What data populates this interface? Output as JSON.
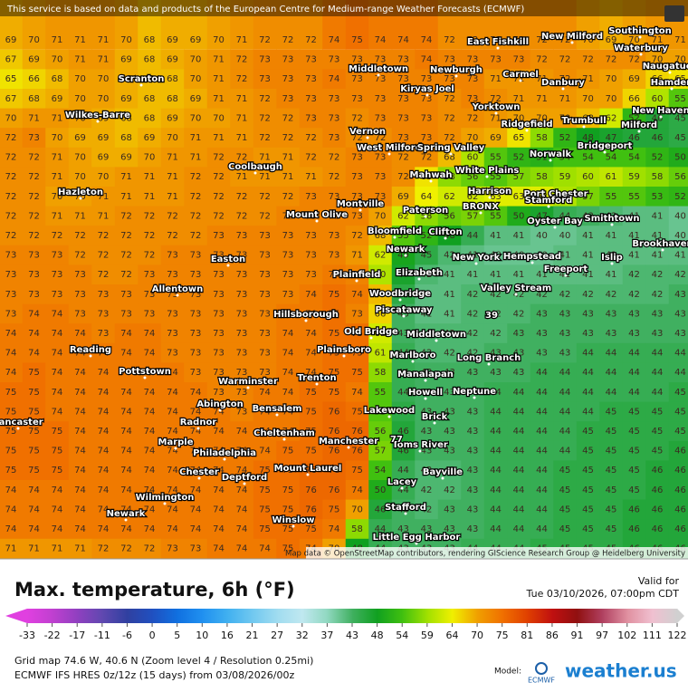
{
  "header": {
    "notice": "This service is based on data and products of the European Centre for Medium-range Weather Forecasts (ECMWF)"
  },
  "map": {
    "grid_values": [
      [
        69,
        70,
        71,
        71,
        71,
        70,
        68,
        69,
        69,
        70,
        71,
        72,
        72,
        72,
        74,
        75,
        74,
        74,
        74,
        72,
        72,
        72,
        72,
        72,
        72,
        70,
        69,
        70,
        71,
        71
      ],
      [
        67,
        69,
        70,
        71,
        71,
        69,
        68,
        69,
        70,
        71,
        72,
        73,
        73,
        73,
        73,
        73,
        73,
        73,
        74,
        73,
        73,
        73,
        73,
        72,
        72,
        72,
        72,
        72,
        70,
        70
      ],
      [
        65,
        66,
        68,
        70,
        70,
        69,
        68,
        68,
        70,
        71,
        72,
        73,
        73,
        73,
        74,
        73,
        73,
        73,
        73,
        73,
        73,
        71,
        71,
        71,
        72,
        71,
        70,
        69,
        66,
        65
      ],
      [
        67,
        68,
        69,
        70,
        70,
        69,
        68,
        68,
        69,
        71,
        71,
        72,
        73,
        73,
        73,
        73,
        73,
        73,
        73,
        72,
        73,
        72,
        71,
        71,
        71,
        70,
        70,
        66,
        60,
        55
      ],
      [
        70,
        71,
        71,
        70,
        69,
        68,
        68,
        69,
        70,
        70,
        71,
        72,
        72,
        73,
        73,
        72,
        73,
        73,
        73,
        72,
        72,
        71,
        70,
        70,
        70,
        68,
        62,
        52,
        46,
        45
      ],
      [
        72,
        73,
        70,
        69,
        69,
        68,
        69,
        70,
        71,
        71,
        71,
        72,
        72,
        72,
        73,
        72,
        72,
        73,
        73,
        72,
        70,
        69,
        65,
        58,
        52,
        48,
        47,
        46,
        46,
        45
      ],
      [
        72,
        72,
        71,
        70,
        69,
        69,
        70,
        71,
        71,
        72,
        72,
        71,
        71,
        72,
        72,
        73,
        73,
        72,
        72,
        68,
        60,
        55,
        52,
        51,
        54,
        54,
        54,
        54,
        52,
        50
      ],
      [
        72,
        72,
        71,
        70,
        70,
        71,
        71,
        71,
        72,
        72,
        71,
        71,
        71,
        71,
        72,
        73,
        73,
        72,
        65,
        58,
        56,
        55,
        57,
        58,
        59,
        60,
        61,
        59,
        58,
        56
      ],
      [
        72,
        72,
        70,
        70,
        71,
        71,
        71,
        71,
        72,
        72,
        72,
        72,
        72,
        73,
        73,
        73,
        73,
        69,
        64,
        62,
        62,
        63,
        63,
        63,
        60,
        57,
        55,
        55,
        53,
        52
      ],
      [
        72,
        72,
        71,
        71,
        71,
        72,
        72,
        72,
        72,
        72,
        72,
        72,
        73,
        73,
        73,
        73,
        70,
        62,
        58,
        56,
        57,
        55,
        50,
        47,
        44,
        43,
        42,
        41,
        41,
        40
      ],
      [
        72,
        72,
        72,
        72,
        72,
        72,
        72,
        72,
        72,
        73,
        73,
        73,
        73,
        73,
        73,
        72,
        68,
        55,
        52,
        48,
        44,
        41,
        41,
        40,
        40,
        41,
        41,
        41,
        41,
        40
      ],
      [
        73,
        73,
        73,
        72,
        72,
        72,
        72,
        73,
        73,
        73,
        73,
        73,
        73,
        73,
        73,
        71,
        62,
        49,
        45,
        42,
        41,
        40,
        40,
        40,
        41,
        41,
        41,
        41,
        41,
        41
      ],
      [
        73,
        73,
        73,
        73,
        72,
        72,
        73,
        73,
        73,
        73,
        73,
        73,
        73,
        73,
        74,
        73,
        60,
        47,
        42,
        41,
        41,
        41,
        41,
        41,
        41,
        41,
        41,
        42,
        42,
        42
      ],
      [
        73,
        73,
        73,
        73,
        73,
        73,
        73,
        73,
        73,
        73,
        73,
        73,
        73,
        74,
        75,
        74,
        68,
        45,
        41,
        41,
        42,
        42,
        42,
        42,
        42,
        42,
        42,
        42,
        42,
        43
      ],
      [
        73,
        74,
        74,
        73,
        73,
        73,
        73,
        73,
        73,
        73,
        73,
        73,
        74,
        74,
        75,
        73,
        66,
        43,
        41,
        41,
        42,
        42,
        42,
        43,
        43,
        43,
        43,
        43,
        43,
        43
      ],
      [
        74,
        74,
        74,
        74,
        73,
        74,
        74,
        73,
        73,
        73,
        73,
        73,
        74,
        74,
        75,
        75,
        62,
        43,
        42,
        42,
        42,
        42,
        43,
        43,
        43,
        43,
        43,
        43,
        43,
        43
      ],
      [
        74,
        74,
        74,
        74,
        74,
        74,
        74,
        73,
        73,
        73,
        73,
        73,
        74,
        74,
        75,
        75,
        61,
        44,
        42,
        42,
        42,
        43,
        43,
        43,
        43,
        44,
        44,
        44,
        44,
        44
      ],
      [
        74,
        75,
        74,
        74,
        74,
        74,
        74,
        74,
        73,
        73,
        73,
        73,
        74,
        74,
        75,
        75,
        58,
        44,
        43,
        43,
        43,
        43,
        43,
        44,
        44,
        44,
        44,
        44,
        44,
        44
      ],
      [
        75,
        75,
        74,
        74,
        74,
        74,
        74,
        74,
        74,
        73,
        73,
        74,
        74,
        75,
        75,
        74,
        55,
        44,
        43,
        43,
        43,
        44,
        44,
        44,
        44,
        44,
        44,
        44,
        44,
        45
      ],
      [
        75,
        75,
        74,
        74,
        74,
        74,
        74,
        74,
        74,
        74,
        73,
        74,
        74,
        75,
        76,
        75,
        55,
        45,
        43,
        43,
        43,
        44,
        44,
        44,
        44,
        44,
        45,
        45,
        45,
        45
      ],
      [
        75,
        75,
        75,
        74,
        74,
        74,
        74,
        74,
        74,
        74,
        74,
        74,
        74,
        75,
        76,
        76,
        56,
        46,
        43,
        43,
        43,
        44,
        44,
        44,
        44,
        45,
        45,
        45,
        45,
        45
      ],
      [
        75,
        75,
        75,
        74,
        74,
        74,
        74,
        74,
        74,
        74,
        74,
        74,
        75,
        75,
        76,
        76,
        57,
        46,
        43,
        43,
        43,
        44,
        44,
        44,
        44,
        45,
        45,
        45,
        45,
        46
      ],
      [
        75,
        75,
        75,
        74,
        74,
        74,
        74,
        74,
        74,
        74,
        74,
        75,
        75,
        76,
        76,
        75,
        54,
        44,
        42,
        42,
        43,
        44,
        44,
        44,
        45,
        45,
        45,
        45,
        46,
        46
      ],
      [
        74,
        74,
        74,
        74,
        74,
        74,
        74,
        74,
        74,
        74,
        74,
        75,
        75,
        76,
        76,
        74,
        50,
        44,
        42,
        42,
        43,
        44,
        44,
        44,
        45,
        45,
        45,
        45,
        46,
        46
      ],
      [
        74,
        74,
        74,
        74,
        74,
        74,
        74,
        74,
        74,
        74,
        74,
        75,
        75,
        76,
        75,
        70,
        46,
        43,
        42,
        43,
        43,
        44,
        44,
        44,
        45,
        45,
        45,
        46,
        46,
        46
      ],
      [
        74,
        74,
        74,
        74,
        74,
        74,
        74,
        74,
        74,
        74,
        74,
        75,
        75,
        75,
        74,
        58,
        44,
        43,
        43,
        43,
        43,
        44,
        44,
        44,
        45,
        45,
        45,
        46,
        46,
        46
      ],
      [
        71,
        71,
        71,
        71,
        72,
        72,
        72,
        73,
        73,
        74,
        74,
        74,
        75,
        74,
        70,
        48,
        44,
        43,
        43,
        43,
        44,
        44,
        44,
        45,
        45,
        45,
        45,
        46,
        46,
        46
      ]
    ],
    "min_marker": 39,
    "max_marker": 77,
    "places": [
      "Middletown",
      "Newburgh",
      "East Fishkill",
      "New Milford",
      "Southington",
      "Waterbury",
      "Naugatuck",
      "Carmel",
      "Danbury",
      "Hamden",
      "Scranton",
      "Kiryas Joel",
      "Wilkes-Barre",
      "Yorktown",
      "New Haven",
      "Ridgefield",
      "Trumbull",
      "Milford",
      "Vernon",
      "West Milford",
      "Spring Valley",
      "Bridgeport",
      "Norwalk",
      "Coolbaugh",
      "Mahwah",
      "White Plains",
      "Hazleton",
      "Harrison",
      "Port Chester",
      "Stamford",
      "Montville",
      "Paterson",
      "BRONX",
      "Mount Olive",
      "Oyster Bay",
      "Smithtown",
      "Bloomfield",
      "Clifton",
      "Newark",
      "Brookhaven",
      "Hempstead",
      "New York",
      "Islip",
      "Easton",
      "Plainfield",
      "Elizabeth",
      "Freeport",
      "Allentown",
      "Woodbridge",
      "Valley Stream",
      "Piscataway",
      "Hillsborough",
      "Old Bridge",
      "Middletown",
      "Reading",
      "Plainsboro",
      "Marlboro",
      "Long Branch",
      "Pottstown",
      "Manalapan",
      "Trenton",
      "Warminster",
      "Howell",
      "Neptune",
      "Abington",
      "Bensalem",
      "Lakewood",
      "Radnor",
      "Brick",
      "Lancaster",
      "Cheltenham",
      "Manchester",
      "Toms River",
      "Marple",
      "Philadelphia",
      "Mount Laurel",
      "Chester",
      "Deptford",
      "Bayville",
      "Lacey",
      "Wilmington",
      "Stafford",
      "Newark",
      "Winslow",
      "Little Egg Harbor"
    ],
    "attribution": "Map data © OpenStreetMap contributors, rendering GIScience Research Group @ Heidelberg University"
  },
  "footer": {
    "title": "Max. temperature, 6h (°F)",
    "valid_label": "Valid for",
    "valid_time": "Tue 03/10/2026, 07:00pm CDT",
    "colorbar_ticks": [
      -33,
      -22,
      -17,
      -11,
      -6,
      0,
      5,
      10,
      16,
      21,
      27,
      32,
      37,
      43,
      48,
      54,
      59,
      64,
      70,
      75,
      81,
      86,
      91,
      97,
      102,
      111,
      122
    ],
    "colorbar_colors": [
      "#e040e0",
      "#c040d0",
      "#9040c0",
      "#6048b0",
      "#3040a0",
      "#2050c0",
      "#1070e0",
      "#2090f0",
      "#40b0f0",
      "#70c8f0",
      "#a0dcf0",
      "#c0e8f0",
      "#90d8c0",
      "#40b060",
      "#10a020",
      "#40c010",
      "#a0e000",
      "#f0f000",
      "#f0a000",
      "#f07000",
      "#e04000",
      "#c01010",
      "#901010",
      "#b04060",
      "#e090a0",
      "#f0c0d0",
      "#d0d0d0"
    ],
    "grid_info": "Grid map 74.6 W, 40.6 N (Zoom level 4 / Resolution 0.25mi)",
    "model_run": "ECMWF IFS HRES 0z/12z (15 days) from 03/08/2026/00z",
    "model_label": "Model:",
    "model_name": "ECMWF",
    "brand": "weather.us"
  }
}
